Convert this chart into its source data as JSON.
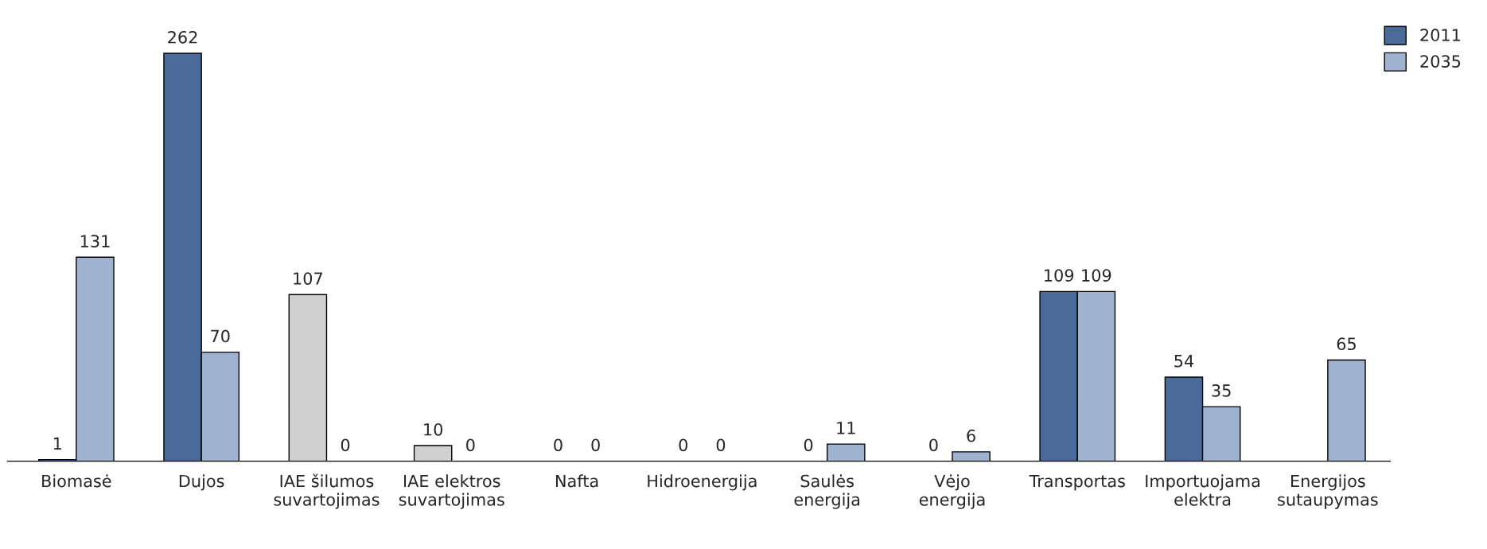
{
  "chart_data": {
    "type": "bar",
    "categories": [
      "Biomasė",
      "Dujos",
      "IAE šilumos\nsuvartojimas",
      "IAE elektros\nsuvartojimas",
      "Nafta",
      "Hidroenergija",
      "Saulės\nenergija",
      "Vėjo\nenergija",
      "Transportas",
      "Importuojama\nelektra",
      "Energijos\nsutaupymas"
    ],
    "series": [
      {
        "name": "2011",
        "color": "#4a6a99",
        "colors": [
          "#4a6a99",
          "#4a6a99",
          "#d0d0d0",
          "#d0d0d0",
          "#4a6a99",
          "#4a6a99",
          "#4a6a99",
          "#4a6a99",
          "#4a6a99",
          "#4a6a99",
          "#4a6a99"
        ],
        "values": [
          1,
          262,
          107,
          10,
          0,
          0,
          0,
          0,
          109,
          54,
          null
        ]
      },
      {
        "name": "2035",
        "color": "#9fb2d0",
        "values": [
          131,
          70,
          0,
          0,
          0,
          0,
          11,
          6,
          109,
          35,
          65
        ]
      }
    ],
    "data_labels": true,
    "legend": "top right",
    "grid": false
  }
}
